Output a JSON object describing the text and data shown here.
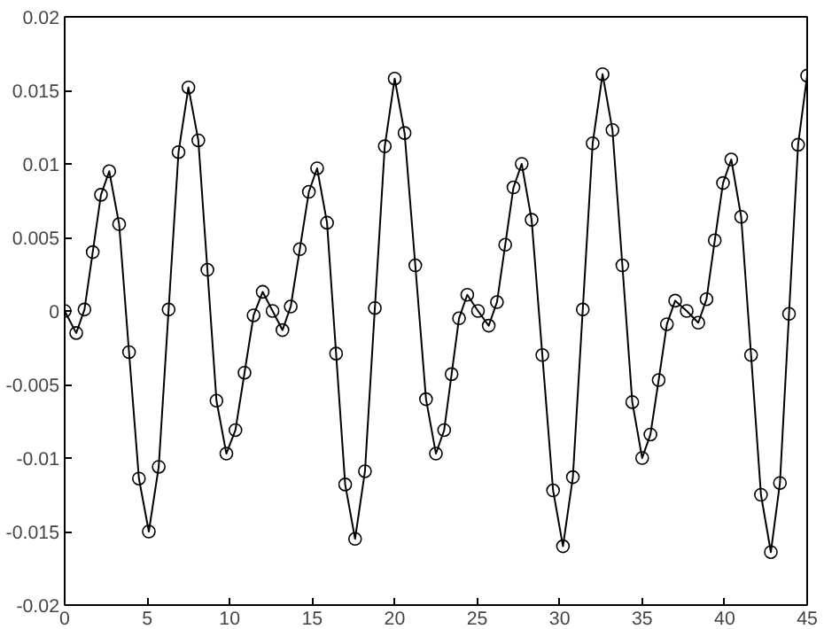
{
  "chart_data": {
    "type": "line",
    "marker": "circle",
    "line_style": "solid",
    "grid": false,
    "x": [
      0,
      0.7,
      1.2,
      1.7,
      2.2,
      2.7,
      3.3,
      3.9,
      4.5,
      5.1,
      5.7,
      6.3,
      6.9,
      7.5,
      8.1,
      8.65,
      9.2,
      9.8,
      10.35,
      10.9,
      11.45,
      12,
      12.6,
      13.2,
      13.7,
      14.25,
      14.8,
      15.3,
      15.9,
      16.45,
      17.0,
      17.6,
      18.2,
      18.8,
      19.4,
      20,
      20.6,
      21.25,
      21.9,
      22.5,
      23.0,
      23.45,
      23.9,
      24.4,
      25.05,
      25.7,
      26.2,
      26.7,
      27.2,
      27.7,
      28.3,
      28.95,
      29.6,
      30.2,
      30.8,
      31.4,
      32.0,
      32.6,
      33.2,
      33.8,
      34.4,
      35.0,
      35.5,
      36.0,
      36.5,
      37.0,
      37.7,
      38.4,
      38.9,
      39.4,
      39.9,
      40.4,
      41.0,
      41.6,
      42.2,
      42.8,
      43.35,
      43.9,
      44.45,
      45
    ],
    "series": [
      {
        "color": "#000000",
        "values": [
          0,
          -0.0015,
          0.0001,
          0.004,
          0.0079,
          0.0095,
          0.0059,
          -0.0028,
          -0.0114,
          -0.015,
          -0.0106,
          0.0001,
          0.0108,
          0.0152,
          0.0116,
          0.0028,
          -0.0061,
          -0.0097,
          -0.0081,
          -0.0042,
          -0.0003,
          0.0013,
          0,
          -0.0013,
          0.0003,
          0.0042,
          0.0081,
          0.0097,
          0.006,
          -0.0029,
          -0.0118,
          -0.0155,
          -0.0109,
          0.0002,
          0.0112,
          0.0158,
          0.0121,
          0.0031,
          -0.006,
          -0.0097,
          -0.0081,
          -0.0043,
          -0.0005,
          0.0011,
          0,
          -0.001,
          0.0006,
          0.0045,
          0.0084,
          0.01,
          0.0062,
          -0.003,
          -0.0122,
          -0.016,
          -0.0113,
          0.0001,
          0.0114,
          0.0161,
          0.0123,
          0.0031,
          -0.0062,
          -0.01,
          -0.0084,
          -0.0047,
          -0.0009,
          0.0007,
          0,
          -0.0008,
          0.0008,
          0.0048,
          0.0087,
          0.0103,
          0.0064,
          -0.003,
          -0.0125,
          -0.0164,
          -0.0117,
          -0.0002,
          0.0113,
          0.016
        ]
      }
    ],
    "xlim": [
      0,
      45
    ],
    "xticks": [
      0,
      5,
      10,
      15,
      20,
      25,
      30,
      35,
      40,
      45
    ],
    "ylim": [
      -0.02,
      0.02
    ],
    "yticks": [
      -0.02,
      -0.015,
      -0.01,
      -0.005,
      0,
      0.005,
      0.01,
      0.015,
      0.02
    ]
  }
}
